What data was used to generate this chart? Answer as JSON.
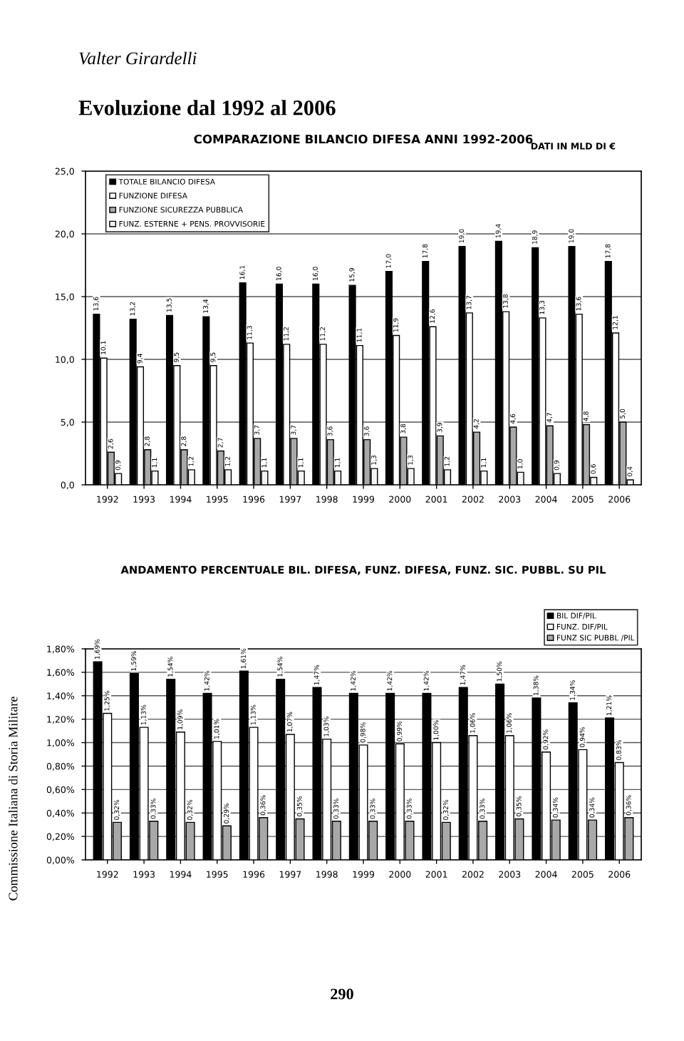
{
  "chart_data": [
    {
      "type": "bar",
      "title": "COMPARAZIONE BILANCIO DIFESA ANNI 1992-2006",
      "annotations": [
        "Valter Girardelli",
        "Evoluzione dal 1992 al 2006",
        "DATI IN MLD DI €"
      ],
      "categories": [
        "1992",
        "1993",
        "1994",
        "1995",
        "1996",
        "1997",
        "1998",
        "1999",
        "2000",
        "2001",
        "2002",
        "2003",
        "2004",
        "2005",
        "2006"
      ],
      "series": [
        {
          "name": "TOTALE BILANCIO DIFESA",
          "color": "#000000",
          "values": [
            13.6,
            13.2,
            13.5,
            13.4,
            16.1,
            16.0,
            16.0,
            15.9,
            17.0,
            17.8,
            19.0,
            19.4,
            18.9,
            19.0,
            17.8
          ],
          "value_labels": [
            "13,6",
            "13,2",
            "13,5",
            "13,4",
            "16,1",
            "16,0",
            "16,0",
            "15,9",
            "17,0",
            "17,8",
            "19,0",
            "19,4",
            "18,9",
            "19,0",
            "17,8"
          ]
        },
        {
          "name": "FUNZIONE DIFESA",
          "color": "#ffffff",
          "values": [
            10.1,
            9.4,
            9.5,
            9.5,
            11.3,
            11.2,
            11.2,
            11.1,
            11.9,
            12.6,
            13.7,
            13.8,
            13.3,
            13.6,
            12.1
          ],
          "value_labels": [
            "10,1",
            "9,4",
            "9,5",
            "9,5",
            "11,3",
            "11,2",
            "11,2",
            "11,1",
            "11,9",
            "12,6",
            "13,7",
            "13,8",
            "13,3",
            "13,6",
            "12,1"
          ]
        },
        {
          "name": "FUNZIONE SICUREZZA PUBBLICA",
          "color": "#a8a8a8",
          "values": [
            2.6,
            2.8,
            2.8,
            2.7,
            3.7,
            3.7,
            3.6,
            3.6,
            3.8,
            3.9,
            4.2,
            4.6,
            4.7,
            4.8,
            5.0
          ],
          "value_labels": [
            "2,6",
            "2,8",
            "2,8",
            "2,7",
            "3,7",
            "3,7",
            "3,6",
            "3,6",
            "3,8",
            "3,9",
            "4,2",
            "4,6",
            "4,7",
            "4,8",
            "5,0"
          ]
        },
        {
          "name": "FUNZ. ESTERNE + PENS. PROVVISORIE",
          "color": "#f4f4f4",
          "values": [
            0.9,
            1.1,
            1.2,
            1.2,
            1.1,
            1.1,
            1.1,
            1.3,
            1.3,
            1.2,
            1.1,
            1.0,
            0.9,
            0.6,
            0.4
          ],
          "value_labels": [
            "0,9",
            "1,1",
            "1,2",
            "1,2",
            "1,1",
            "1,1",
            "1,1",
            "1,3",
            "1,3",
            "1,2",
            "1,1",
            "1,0",
            "0,9",
            "0,6",
            "0,4"
          ]
        }
      ],
      "ylim": [
        0,
        25
      ],
      "yticks": [
        {
          "value": 0,
          "label": "0,0"
        },
        {
          "value": 5,
          "label": "5,0"
        },
        {
          "value": 10,
          "label": "10,0"
        },
        {
          "value": 15,
          "label": "15,0"
        },
        {
          "value": 20,
          "label": "20,0"
        },
        {
          "value": 25,
          "label": "25,0"
        }
      ],
      "grid": "y",
      "legend": "top left"
    },
    {
      "type": "bar",
      "title": "ANDAMENTO PERCENTUALE BIL. DIFESA, FUNZ. DIFESA, FUNZ. SIC. PUBBL. SU PIL",
      "annotations": [
        "Commissione Italiana di Storia Militare",
        "290"
      ],
      "categories": [
        "1992",
        "1993",
        "1994",
        "1995",
        "1996",
        "1997",
        "1998",
        "1999",
        "2000",
        "2001",
        "2002",
        "2003",
        "2004",
        "2005",
        "2006"
      ],
      "series": [
        {
          "name": "BIL DIF/PIL",
          "color": "#000000",
          "values": [
            1.69,
            1.59,
            1.54,
            1.42,
            1.61,
            1.54,
            1.47,
            1.42,
            1.42,
            1.42,
            1.47,
            1.5,
            1.38,
            1.34,
            1.21
          ],
          "value_labels": [
            "1,69%",
            "1,59%",
            "1,54%",
            "1,42%",
            "1,61%",
            "1,54%",
            "1,47%",
            "1,42%",
            "1,42%",
            "1,42%",
            "1,47%",
            "1,50%",
            "1,38%",
            "1,34%",
            "1,21%"
          ]
        },
        {
          "name": "FUNZ. DIF/PIL",
          "color": "#ffffff",
          "values": [
            1.25,
            1.13,
            1.09,
            1.01,
            1.13,
            1.07,
            1.03,
            0.98,
            0.99,
            1.0,
            1.06,
            1.06,
            0.92,
            0.94,
            0.83
          ],
          "value_labels": [
            "1,25%",
            "1,13%",
            "1,09%",
            "1,01%",
            "1,13%",
            "1,07%",
            "1,03%",
            "0,98%",
            "0,99%",
            "1,00%",
            "1,06%",
            "1,06%",
            "0,92%",
            "0,94%",
            "0,83%"
          ]
        },
        {
          "name": "FUNZ SIC PUBBL /PIL",
          "color": "#a8a8a8",
          "values": [
            0.32,
            0.33,
            0.32,
            0.29,
            0.36,
            0.35,
            0.33,
            0.33,
            0.33,
            0.32,
            0.33,
            0.35,
            0.34,
            0.34,
            0.36
          ],
          "value_labels": [
            "0,32%",
            "0,33%",
            "0,32%",
            "0,29%",
            "0,36%",
            "0,35%",
            "0,33%",
            "0,33%",
            "0,33%",
            "0,32%",
            "0,33%",
            "0,35%",
            "0,34%",
            "0,34%",
            "0,36%"
          ]
        }
      ],
      "ylim": [
        0,
        1.8
      ],
      "yticks": [
        {
          "value": 0,
          "label": "0,00%"
        },
        {
          "value": 0.2,
          "label": "0,20%"
        },
        {
          "value": 0.4,
          "label": "0,40%"
        },
        {
          "value": 0.6,
          "label": "0,60%"
        },
        {
          "value": 0.8,
          "label": "0,80%"
        },
        {
          "value": 1.0,
          "label": "1,00%"
        },
        {
          "value": 1.2,
          "label": "1,20%"
        },
        {
          "value": 1.4,
          "label": "1,40%"
        },
        {
          "value": 1.6,
          "label": "1,60%"
        },
        {
          "value": 1.8,
          "label": "1,80%"
        }
      ],
      "grid": "y",
      "legend": "top right"
    }
  ]
}
